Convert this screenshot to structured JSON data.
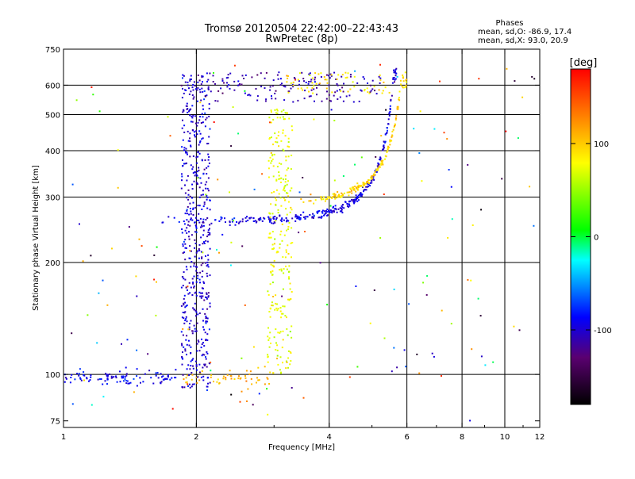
{
  "chart_data": {
    "type": "scatter",
    "title": "Tromsø 20120504 22:42:00–22:43:43",
    "subtitle": "RwPretec (8p)",
    "xlabel": "Frequency [MHz]",
    "ylabel": "Stationary phase Virtual Height [km]",
    "x_scale": "log",
    "y_scale": "log",
    "xlim": [
      1,
      12
    ],
    "ylim": [
      72,
      750
    ],
    "x_ticks": [
      1,
      2,
      4,
      6,
      8,
      10,
      12
    ],
    "y_ticks": [
      75,
      100,
      200,
      300,
      400,
      500,
      600,
      750
    ],
    "x_grid_lines": [
      2,
      4,
      6,
      8,
      10
    ],
    "y_grid_lines": [
      100,
      200,
      300,
      400,
      500,
      600
    ],
    "phases_box": {
      "heading": "Phases",
      "line1": "mean, sd,O: -86.9, 17.4",
      "line2": "mean, sd,X: 93.0, 20.9"
    },
    "colorbar": {
      "label": "[deg]",
      "range": [
        -180,
        180
      ],
      "ticks": [
        100,
        0,
        -100
      ],
      "colors": [
        "#000000",
        "#5a0070",
        "#0000ff",
        "#00ffff",
        "#00ff00",
        "#ffff00",
        "#ff8000",
        "#ff0000"
      ]
    },
    "series": [
      {
        "name": "E-layer O trace",
        "phase": -90,
        "f": [
          1.0,
          1.8
        ],
        "h": [
          95,
          101
        ],
        "n": 100,
        "spread_h": 0.03
      },
      {
        "name": "E-layer X trace",
        "phase": 110,
        "f": [
          1.85,
          2.95
        ],
        "h": [
          94,
          102
        ],
        "n": 55,
        "spread_h": 0.03
      },
      {
        "name": "F-layer O trace",
        "phase": -95,
        "f": [
          1.6,
          5.7
        ],
        "h": [
          258,
          660
        ],
        "n": 320,
        "spread_h": 0.025,
        "curve": "critical",
        "fc": 5.85
      },
      {
        "name": "F-layer X trace",
        "phase": 95,
        "f": [
          3.4,
          6.0
        ],
        "h": [
          285,
          640
        ],
        "n": 180,
        "spread_h": 0.02,
        "curve": "critical",
        "fc": 6.15
      },
      {
        "name": "Vertical spread O ~2 MHz",
        "phase": -100,
        "f": [
          1.85,
          2.15
        ],
        "h": [
          92,
          640
        ],
        "n": 520,
        "spread_h": 0.0
      },
      {
        "name": "Vertical spread X ~3 MHz",
        "phase": 75,
        "f": [
          2.9,
          3.3
        ],
        "h": [
          100,
          520
        ],
        "n": 260,
        "spread_h": 0.0
      },
      {
        "name": "Top O band",
        "phase": -110,
        "f": [
          1.9,
          5.3
        ],
        "h": [
          540,
          650
        ],
        "n": 160,
        "spread_h": 0.0
      },
      {
        "name": "Top X band",
        "phase": 90,
        "f": [
          3.2,
          5.5
        ],
        "h": [
          570,
          650
        ],
        "n": 60,
        "spread_h": 0.0
      },
      {
        "name": "Scattered noise",
        "phase": 0,
        "f": [
          1.0,
          12.0
        ],
        "h": [
          75,
          700
        ],
        "n": 170,
        "spread_h": 0.0,
        "random_phase": true
      }
    ]
  }
}
